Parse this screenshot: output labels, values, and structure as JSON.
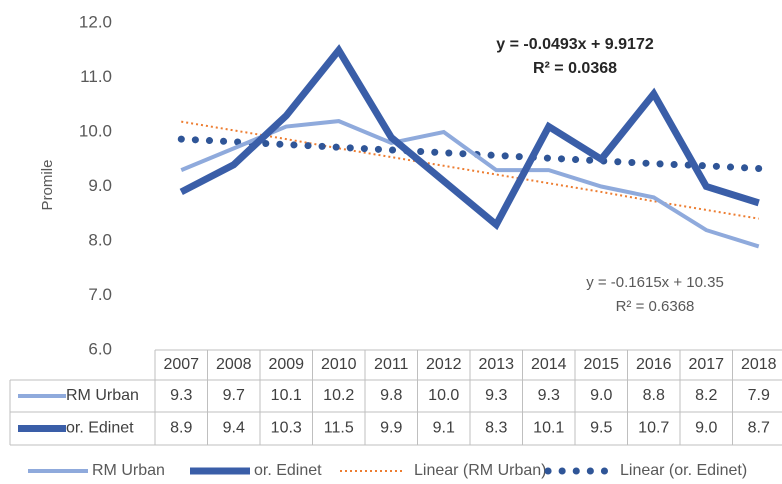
{
  "chart_data": {
    "type": "line",
    "y_axis_label": "Promile",
    "categories": [
      "2007",
      "2008",
      "2009",
      "2010",
      "2011",
      "2012",
      "2013",
      "2014",
      "2015",
      "2016",
      "2017",
      "2018"
    ],
    "ylim": [
      6,
      12
    ],
    "yticks": [
      {
        "value": 6,
        "label": "6.0"
      },
      {
        "value": 7,
        "label": "7.0"
      },
      {
        "value": 8,
        "label": "8.0"
      },
      {
        "value": 9,
        "label": "9.0"
      },
      {
        "value": 10,
        "label": "10.0"
      },
      {
        "value": 11,
        "label": "11.0"
      },
      {
        "value": 12,
        "label": "12.0"
      }
    ],
    "grid": false,
    "data_table": true,
    "legend_position": "bottom",
    "series": [
      {
        "name": "RM Urban",
        "color": "#8faadc",
        "style": "solid",
        "table": true,
        "values": [
          9.3,
          9.7,
          10.1,
          10.2,
          9.8,
          10.0,
          9.3,
          9.3,
          9.0,
          8.8,
          8.2,
          7.9
        ],
        "value_labels": [
          "9.3",
          "9.7",
          "10.1",
          "10.2",
          "9.8",
          "10.0",
          "9.3",
          "9.3",
          "9.0",
          "8.8",
          "8.2",
          "7.9"
        ]
      },
      {
        "name": "or. Edinet",
        "color": "#3a5ea8",
        "style": "solid",
        "table": true,
        "values": [
          8.9,
          9.4,
          10.3,
          11.5,
          9.9,
          9.1,
          8.3,
          10.1,
          9.5,
          10.7,
          9.0,
          8.7
        ],
        "value_labels": [
          "8.9",
          "9.4",
          "10.3",
          "11.5",
          "9.9",
          "9.1",
          "8.3",
          "10.1",
          "9.5",
          "10.7",
          "9.0",
          "8.7"
        ]
      },
      {
        "name": "Linear (RM Urban)",
        "color": "#ed7d31",
        "style": "dotted",
        "table": false,
        "values": [
          10.19,
          10.03,
          9.87,
          9.7,
          9.54,
          9.38,
          9.22,
          9.06,
          8.9,
          8.73,
          8.57,
          8.41
        ]
      },
      {
        "name": "Linear (or. Edinet)",
        "color": "#2f5597",
        "style": "dotted",
        "table": false,
        "values": [
          9.87,
          9.82,
          9.77,
          9.72,
          9.67,
          9.62,
          9.57,
          9.52,
          9.47,
          9.42,
          9.38,
          9.33
        ]
      }
    ],
    "annotations": [
      {
        "lines": [
          "y = -0.0493x + 9.9172",
          "R² = 0.0368"
        ]
      },
      {
        "lines": [
          "y = -0.1615x + 10.35",
          "R² = 0.6368"
        ]
      }
    ]
  }
}
